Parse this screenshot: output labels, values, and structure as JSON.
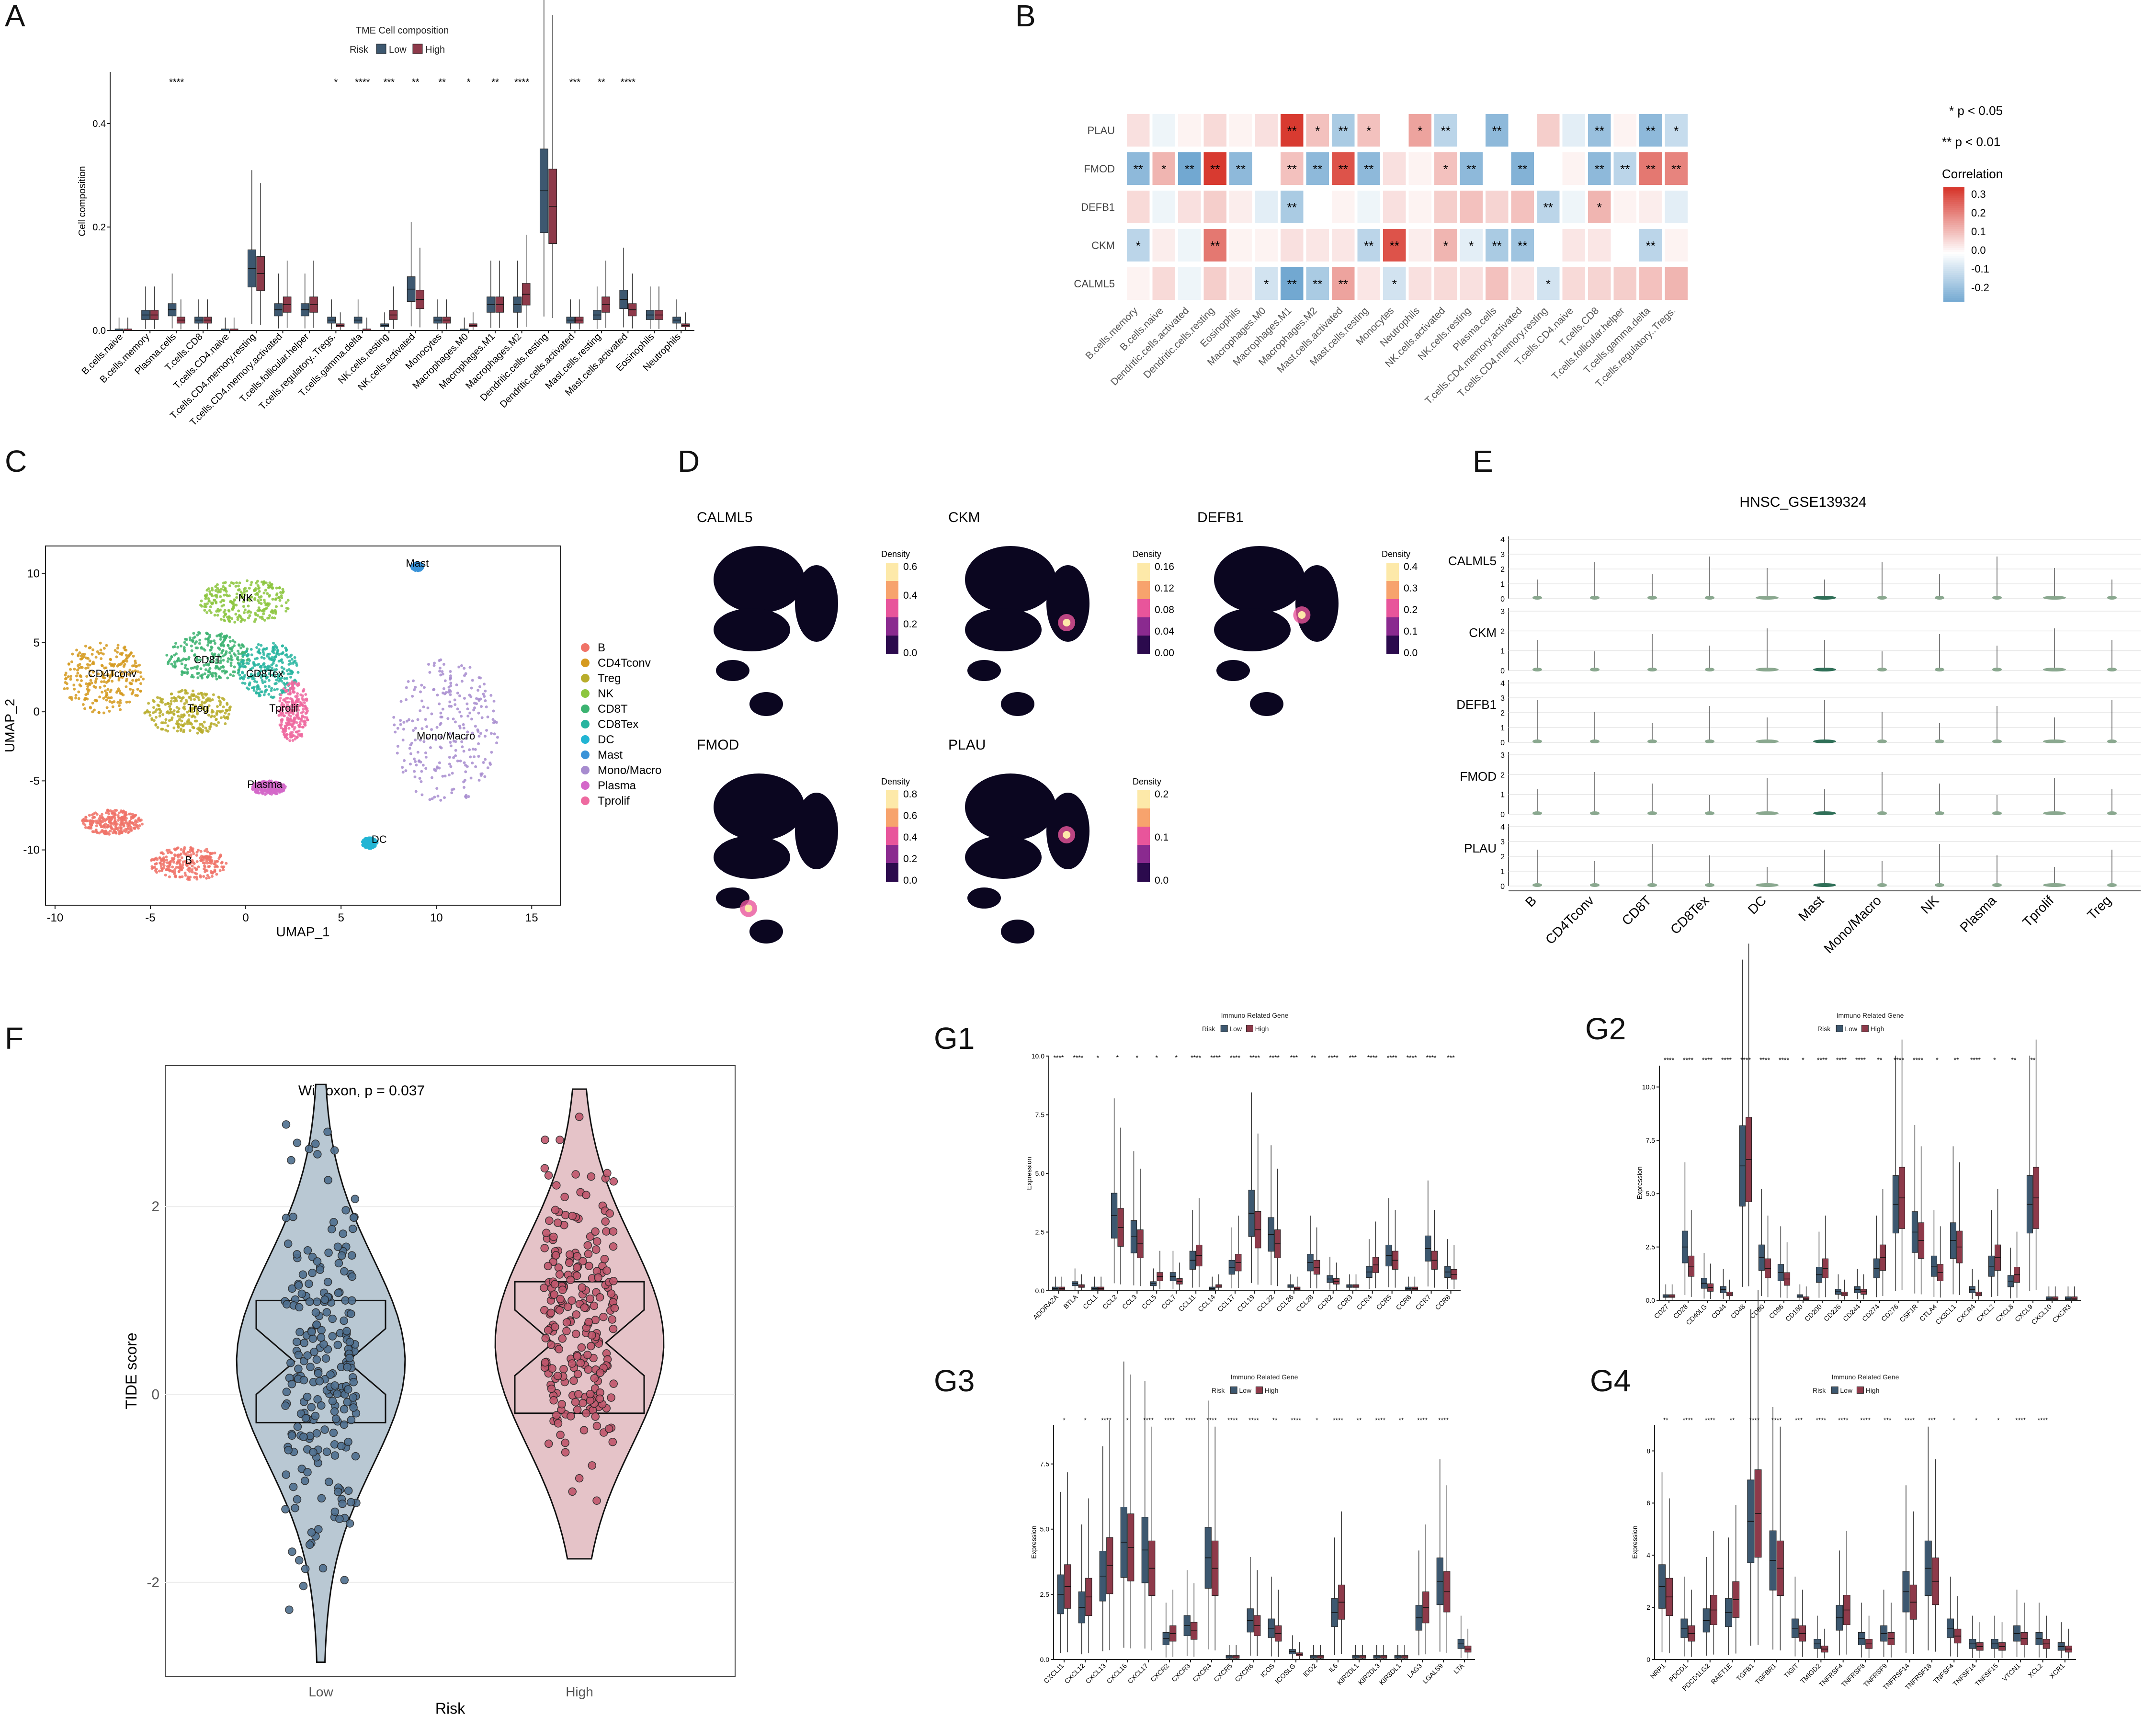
{
  "colors": {
    "low": "#3d5870",
    "high": "#8e3a4a",
    "lowFill": "#b9c8d3",
    "highFill": "#e5c3c8",
    "negCorr": "#4a8fc4",
    "posCorr": "#d83a30"
  },
  "panels": {
    "A": "A",
    "B": "B",
    "C": "C",
    "D": "D",
    "E": "E",
    "F": "F",
    "G1": "G1",
    "G2": "G2",
    "G3": "G3",
    "G4": "G4"
  },
  "chart_data": [
    {
      "id": "A",
      "type": "box",
      "title": "TME Cell composition",
      "legend_title": "Risk",
      "legend": [
        "Low",
        "High"
      ],
      "ylabel": "Cell composition",
      "ylim": [
        0,
        0.5
      ],
      "yticks": [
        0.0,
        0.2,
        0.4
      ],
      "categories": [
        "B.cells.naive",
        "B.cells.memory",
        "Plasma.cells",
        "T.cells.CD8",
        "T.cells.CD4.naive",
        "T.cells.CD4.memory.resting",
        "T.cells.CD4.memory.activated",
        "T.cells.follicular.helper",
        "T.cells.regulatory..Tregs.",
        "T.cells.gamma.delta",
        "NK.cells.resting",
        "NK.cells.activated",
        "Monocytes",
        "Macrophages.M0",
        "Macrophages.M1",
        "Macrophages.M2",
        "Dendritic.cells.resting",
        "Dendritic.cells.activated",
        "Mast.cells.resting",
        "Mast.cells.activated",
        "Eosinophils",
        "Neutrophils"
      ],
      "low_median": [
        0.0,
        0.03,
        0.04,
        0.02,
        0.0,
        0.12,
        0.04,
        0.04,
        0.02,
        0.02,
        0.01,
        0.08,
        0.02,
        0.0,
        0.05,
        0.05,
        0.27,
        0.02,
        0.03,
        0.06,
        0.03,
        0.02
      ],
      "high_median": [
        0.0,
        0.03,
        0.02,
        0.02,
        0.0,
        0.11,
        0.05,
        0.05,
        0.01,
        0.0,
        0.03,
        0.06,
        0.02,
        0.01,
        0.05,
        0.07,
        0.24,
        0.02,
        0.05,
        0.04,
        0.03,
        0.01
      ],
      "signif": [
        "",
        "",
        "****",
        "",
        "",
        "",
        "",
        "",
        "*",
        "****",
        "***",
        "**",
        "**",
        "*",
        "**",
        "****",
        "",
        "***",
        "**",
        "****",
        "",
        ""
      ]
    },
    {
      "id": "B",
      "type": "heatmap",
      "legend_title": "Correlation",
      "legend_ticks": [
        "0.3",
        "0.2",
        "0.1",
        "0.0",
        "-0.1",
        "-0.2"
      ],
      "sig_notes": [
        "* p < 0.05",
        "** p < 0.01"
      ],
      "rows": [
        "PLAU",
        "FMOD",
        "DEFB1",
        "CKM",
        "CALML5"
      ],
      "cols": [
        "B.cells.memory",
        "B.cells.naive",
        "Dendritic.cells.activated",
        "Dendritic.cells.resting",
        "Eosinophils",
        "Macrophages.M0",
        "Macrophages.M1",
        "Macrophages.M2",
        "Mast.cells.activated",
        "Mast.cells.resting",
        "Monocytes",
        "Neutrophils",
        "NK.cells.activated",
        "NK.cells.resting",
        "Plasma.cells",
        "T.cells.CD4.memory.activated",
        "T.cells.CD4.memory.resting",
        "T.cells.CD4.naive",
        "T.cells.CD8",
        "T.cells.follicular.helper",
        "T.cells.gamma.delta",
        "T.cells.regulatory..Tregs."
      ],
      "values": [
        [
          0.05,
          -0.03,
          0.02,
          0.06,
          0.02,
          0.05,
          0.32,
          0.1,
          -0.15,
          0.1,
          0.0,
          0.15,
          -0.12,
          0.0,
          -0.2,
          0.0,
          0.08,
          -0.05,
          -0.18,
          0.02,
          -0.2,
          -0.1
        ],
        [
          -0.2,
          0.12,
          -0.25,
          0.32,
          -0.2,
          0.0,
          0.1,
          -0.2,
          0.28,
          -0.2,
          0.05,
          0.02,
          0.1,
          -0.2,
          0.0,
          -0.22,
          0.0,
          0.02,
          -0.2,
          -0.12,
          0.22,
          0.2
        ],
        [
          0.06,
          -0.03,
          0.05,
          0.08,
          0.03,
          -0.05,
          -0.15,
          0.0,
          0.02,
          -0.03,
          0.05,
          0.02,
          0.08,
          0.1,
          0.07,
          0.1,
          -0.12,
          -0.03,
          0.12,
          0.02,
          0.03,
          -0.05
        ],
        [
          -0.12,
          0.03,
          -0.03,
          0.22,
          0.02,
          0.02,
          0.05,
          0.04,
          0.04,
          -0.12,
          0.28,
          0.03,
          0.12,
          -0.05,
          -0.15,
          -0.17,
          0.0,
          0.04,
          0.04,
          0.0,
          -0.12,
          0.02
        ],
        [
          0.02,
          0.06,
          -0.03,
          0.08,
          0.03,
          -0.08,
          -0.25,
          -0.15,
          0.15,
          0.04,
          -0.08,
          0.05,
          0.06,
          0.05,
          0.1,
          0.04,
          -0.08,
          0.06,
          0.07,
          0.08,
          0.1,
          0.12
        ]
      ],
      "stars": [
        [
          "",
          "",
          "",
          "",
          "",
          "",
          "**",
          "*",
          "**",
          "*",
          "",
          "*",
          "**",
          "",
          "**",
          "",
          "",
          "",
          "**",
          "",
          "**",
          "*"
        ],
        [
          "**",
          "*",
          "**",
          "**",
          "**",
          "",
          "**",
          "**",
          "**",
          "**",
          "",
          "",
          "*",
          "**",
          "",
          "**",
          "",
          "",
          "**",
          "**",
          "**",
          "**"
        ],
        [
          "",
          "",
          "",
          "",
          "",
          "",
          "**",
          "",
          "",
          "",
          "",
          "",
          "",
          "",
          "",
          "",
          "**",
          "",
          "*",
          "",
          "",
          ""
        ],
        [
          "*",
          "",
          "",
          "**",
          "",
          "",
          "",
          "",
          "",
          "**",
          "**",
          "",
          "*",
          "*",
          "**",
          "**",
          "",
          "",
          "",
          "",
          "**",
          ""
        ],
        [
          "",
          "",
          "",
          "",
          "",
          "*",
          "**",
          "**",
          "**",
          "",
          "*",
          "",
          "",
          "",
          "",
          "",
          "*",
          "",
          "",
          "",
          "",
          ""
        ]
      ]
    },
    {
      "id": "C",
      "type": "scatter",
      "xlabel": "UMAP_1",
      "ylabel": "UMAP_2",
      "xticks": [
        "-10",
        "-5",
        "0",
        "5",
        "10",
        "15"
      ],
      "yticks": [
        "10",
        "5",
        "0",
        "-5",
        "-10"
      ],
      "clusters": [
        {
          "name": "B",
          "color": "#f07368",
          "x": -3,
          "y": -11
        },
        {
          "name": "CD4Tconv",
          "color": "#d59a1f",
          "x": -7,
          "y": 2.5
        },
        {
          "name": "Treg",
          "color": "#b9ad2b",
          "x": -2.5,
          "y": 0
        },
        {
          "name": "NK",
          "color": "#8cc63e",
          "x": 0,
          "y": 8
        },
        {
          "name": "CD8T",
          "color": "#3cb371",
          "x": -2,
          "y": 3.5
        },
        {
          "name": "CD8Tex",
          "color": "#28b5a0",
          "x": 1,
          "y": 2.5
        },
        {
          "name": "DC",
          "color": "#22b5d3",
          "x": 7,
          "y": -9.5
        },
        {
          "name": "Mast",
          "color": "#3a93d8",
          "x": 9,
          "y": 10.5
        },
        {
          "name": "Mono/Macro",
          "color": "#a78ccf",
          "x": 10.5,
          "y": -2
        },
        {
          "name": "Plasma",
          "color": "#d468c9",
          "x": 1,
          "y": -5.5
        },
        {
          "name": "Tprolif",
          "color": "#ee6aa0",
          "x": 2,
          "y": 0
        }
      ]
    },
    {
      "id": "D",
      "type": "heatmap",
      "legend_title": "Density",
      "maps": [
        {
          "gene": "CALML5",
          "ticks": [
            "0.6",
            "0.4",
            "0.2",
            "0.0"
          ]
        },
        {
          "gene": "CKM",
          "ticks": [
            "0.16",
            "0.12",
            "0.08",
            "0.04",
            "0.00"
          ]
        },
        {
          "gene": "DEFB1",
          "ticks": [
            "0.4",
            "0.3",
            "0.2",
            "0.1",
            "0.0"
          ]
        },
        {
          "gene": "FMOD",
          "ticks": [
            "0.8",
            "0.6",
            "0.4",
            "0.2",
            "0.0"
          ]
        },
        {
          "gene": "PLAU",
          "ticks": [
            "0.2",
            "0.1",
            "0.0"
          ]
        }
      ]
    },
    {
      "id": "E",
      "type": "violin",
      "title": "HNSC_GSE139324",
      "genes": [
        "CALML5",
        "CKM",
        "DEFB1",
        "FMOD",
        "PLAU"
      ],
      "categories": [
        "B",
        "CD4Tconv",
        "CD8T",
        "CD8Tex",
        "DC",
        "Mast",
        "Mono/Macro",
        "NK",
        "Plasma",
        "Tprolif",
        "Treg"
      ],
      "yticks": [
        [
          "4",
          "3",
          "2",
          "1",
          "0"
        ],
        [
          "3",
          "2",
          "1",
          "0"
        ],
        [
          "4",
          "3",
          "2",
          "1",
          "0"
        ],
        [
          "3",
          "2",
          "1",
          "0"
        ],
        [
          "4",
          "3",
          "2",
          "1",
          "0"
        ]
      ]
    },
    {
      "id": "F",
      "type": "violin",
      "annotation": "Wilcoxon, p = 0.037",
      "xlabel": "Risk",
      "ylabel": "TIDE score",
      "categories": [
        "Low",
        "High"
      ],
      "ylim": [
        -3,
        3.5
      ],
      "yticks": [
        2,
        0,
        -2
      ],
      "median": [
        0.35,
        0.55
      ],
      "q1": [
        -0.3,
        -0.2
      ],
      "q3": [
        1.0,
        1.2
      ]
    },
    {
      "id": "G1",
      "type": "box",
      "title": "Immuno Related Gene",
      "legend_title": "Risk",
      "legend": [
        "Low",
        "High"
      ],
      "ylabel": "Expression",
      "ylim": [
        0,
        10
      ],
      "yticks": [
        "10.0",
        "7.5",
        "5.0",
        "2.5",
        "0.0"
      ],
      "categories": [
        "ADORA2A",
        "BTLA",
        "CCL1",
        "CCL2",
        "CCL3",
        "CCL5",
        "CCL7",
        "CCL11",
        "CCL14",
        "CCL17",
        "CCL19",
        "CCL22",
        "CCL26",
        "CCL28",
        "CCR2",
        "CCR3",
        "CCR4",
        "CCR5",
        "CCR6",
        "CCR7",
        "CCR8"
      ],
      "low_median": [
        0.1,
        0.3,
        0.1,
        3.2,
        2.3,
        0.3,
        0.6,
        1.3,
        0.1,
        1.0,
        3.3,
        2.4,
        0.2,
        1.2,
        0.5,
        0.2,
        0.8,
        1.5,
        0.1,
        1.8,
        0.8
      ],
      "high_median": [
        0.1,
        0.2,
        0.1,
        2.7,
        2.0,
        0.6,
        0.4,
        1.5,
        0.2,
        1.2,
        2.6,
        2.0,
        0.1,
        1.0,
        0.4,
        0.2,
        1.1,
        1.3,
        0.1,
        1.3,
        0.7
      ],
      "signif": [
        "****",
        "****",
        "*",
        "*",
        "*",
        "*",
        "*",
        "****",
        "****",
        "****",
        "****",
        "****",
        "***",
        "**",
        "****",
        "***",
        "****",
        "****",
        "****",
        "****",
        "***"
      ]
    },
    {
      "id": "G2",
      "type": "box",
      "title": "Immuno Related Gene",
      "legend_title": "Risk",
      "legend": [
        "Low",
        "High"
      ],
      "ylabel": "Expression",
      "ylim": [
        0,
        11
      ],
      "yticks": [
        "10.0",
        "7.5",
        "5.0",
        "2.5",
        "0.0"
      ],
      "categories": [
        "CD27",
        "CD28",
        "CD40LG",
        "CD44",
        "CD48",
        "CD80",
        "CD86",
        "CD160",
        "CD200",
        "CD226",
        "CD244",
        "CD274",
        "CD276",
        "CSF1R",
        "CTLA4",
        "CX3CL1",
        "CXCR4",
        "CXCL2",
        "CXCL8",
        "CXCL9",
        "CXCL10",
        "CXCR3"
      ],
      "low_median": [
        0.2,
        2.5,
        0.8,
        0.5,
        6.3,
        2.0,
        1.3,
        0.2,
        1.2,
        0.4,
        0.5,
        1.5,
        4.5,
        3.2,
        1.6,
        2.8,
        0.5,
        1.6,
        0.9,
        4.5,
        0.1,
        0.1
      ],
      "high_median": [
        0.2,
        1.6,
        0.6,
        0.3,
        6.6,
        1.5,
        1.0,
        0.1,
        1.5,
        0.3,
        0.4,
        2.0,
        4.8,
        2.8,
        1.3,
        2.5,
        0.3,
        2.0,
        1.2,
        4.8,
        0.1,
        0.1
      ],
      "signif": [
        "****",
        "****",
        "****",
        "****",
        "****",
        "****",
        "****",
        "*",
        "****",
        "****",
        "****",
        "**",
        "****",
        "****",
        "*",
        "**",
        "****",
        "*",
        "**",
        "**",
        "",
        ""
      ]
    },
    {
      "id": "G3",
      "type": "box",
      "title": "Immuno Related Gene",
      "legend_title": "Risk",
      "legend": [
        "Low",
        "High"
      ],
      "ylabel": "Expression",
      "ylim": [
        0,
        9
      ],
      "yticks": [
        "7.5",
        "5.0",
        "2.5",
        "0.0"
      ],
      "categories": [
        "CXCL11",
        "CXCL12",
        "CXCL13",
        "CXCL16",
        "CXCL17",
        "CXCR2",
        "CXCR3",
        "CXCR4",
        "CXCR5",
        "CXCR6",
        "ICOS",
        "ICOSLG",
        "IDO2",
        "IL6",
        "KIR2DL1",
        "KIR2DL3",
        "KIR3DL1",
        "LAG3",
        "LGALS9",
        "LTA"
      ],
      "low_median": [
        2.5,
        2.0,
        3.2,
        4.5,
        4.2,
        0.8,
        1.3,
        3.9,
        0.1,
        1.5,
        1.2,
        0.3,
        0.1,
        1.8,
        0.1,
        0.1,
        0.1,
        1.6,
        3.0,
        0.6
      ],
      "high_median": [
        2.8,
        2.4,
        3.6,
        4.3,
        3.5,
        1.0,
        1.1,
        3.5,
        0.1,
        1.3,
        1.0,
        0.2,
        0.1,
        2.2,
        0.1,
        0.1,
        0.1,
        2.0,
        2.6,
        0.4
      ],
      "signif": [
        "*",
        "*",
        "****",
        "*",
        "****",
        "****",
        "****",
        "****",
        "****",
        "****",
        "**",
        "****",
        "*",
        "****",
        "**",
        "****",
        "**",
        "****",
        "****",
        ""
      ]
    },
    {
      "id": "G4",
      "type": "box",
      "title": "Immuno Related Gene",
      "legend_title": "Risk",
      "legend": [
        "Low",
        "High"
      ],
      "ylabel": "Expression",
      "ylim": [
        0,
        9
      ],
      "yticks": [
        "8",
        "6",
        "4",
        "2",
        "0"
      ],
      "categories": [
        "NRP1",
        "PDCD1",
        "PDCD1LG2",
        "RAET1E",
        "TGFB1",
        "TGFBR1",
        "TIGIT",
        "TMIGD2",
        "TNFRSF4",
        "TNFRSF8",
        "TNFRSF9",
        "TNFRSF14",
        "TNFRSF18",
        "TNFSF4",
        "TNFSF14",
        "TNFSF15",
        "VTCN1",
        "XCL2",
        "XCR1"
      ],
      "low_median": [
        2.8,
        1.2,
        1.5,
        1.8,
        5.3,
        3.8,
        1.2,
        0.6,
        1.6,
        0.8,
        1.0,
        2.6,
        3.5,
        1.2,
        0.6,
        0.6,
        1.0,
        0.8,
        0.5
      ],
      "high_median": [
        2.4,
        1.0,
        1.9,
        2.3,
        5.6,
        3.5,
        1.0,
        0.4,
        1.9,
        0.6,
        0.8,
        2.2,
        3.0,
        0.9,
        0.5,
        0.5,
        0.8,
        0.6,
        0.4
      ],
      "signif": [
        "**",
        "****",
        "****",
        "**",
        "****",
        "****",
        "***",
        "****",
        "****",
        "****",
        "***",
        "****",
        "***",
        "*",
        "*",
        "*",
        "****",
        "****",
        ""
      ]
    }
  ]
}
